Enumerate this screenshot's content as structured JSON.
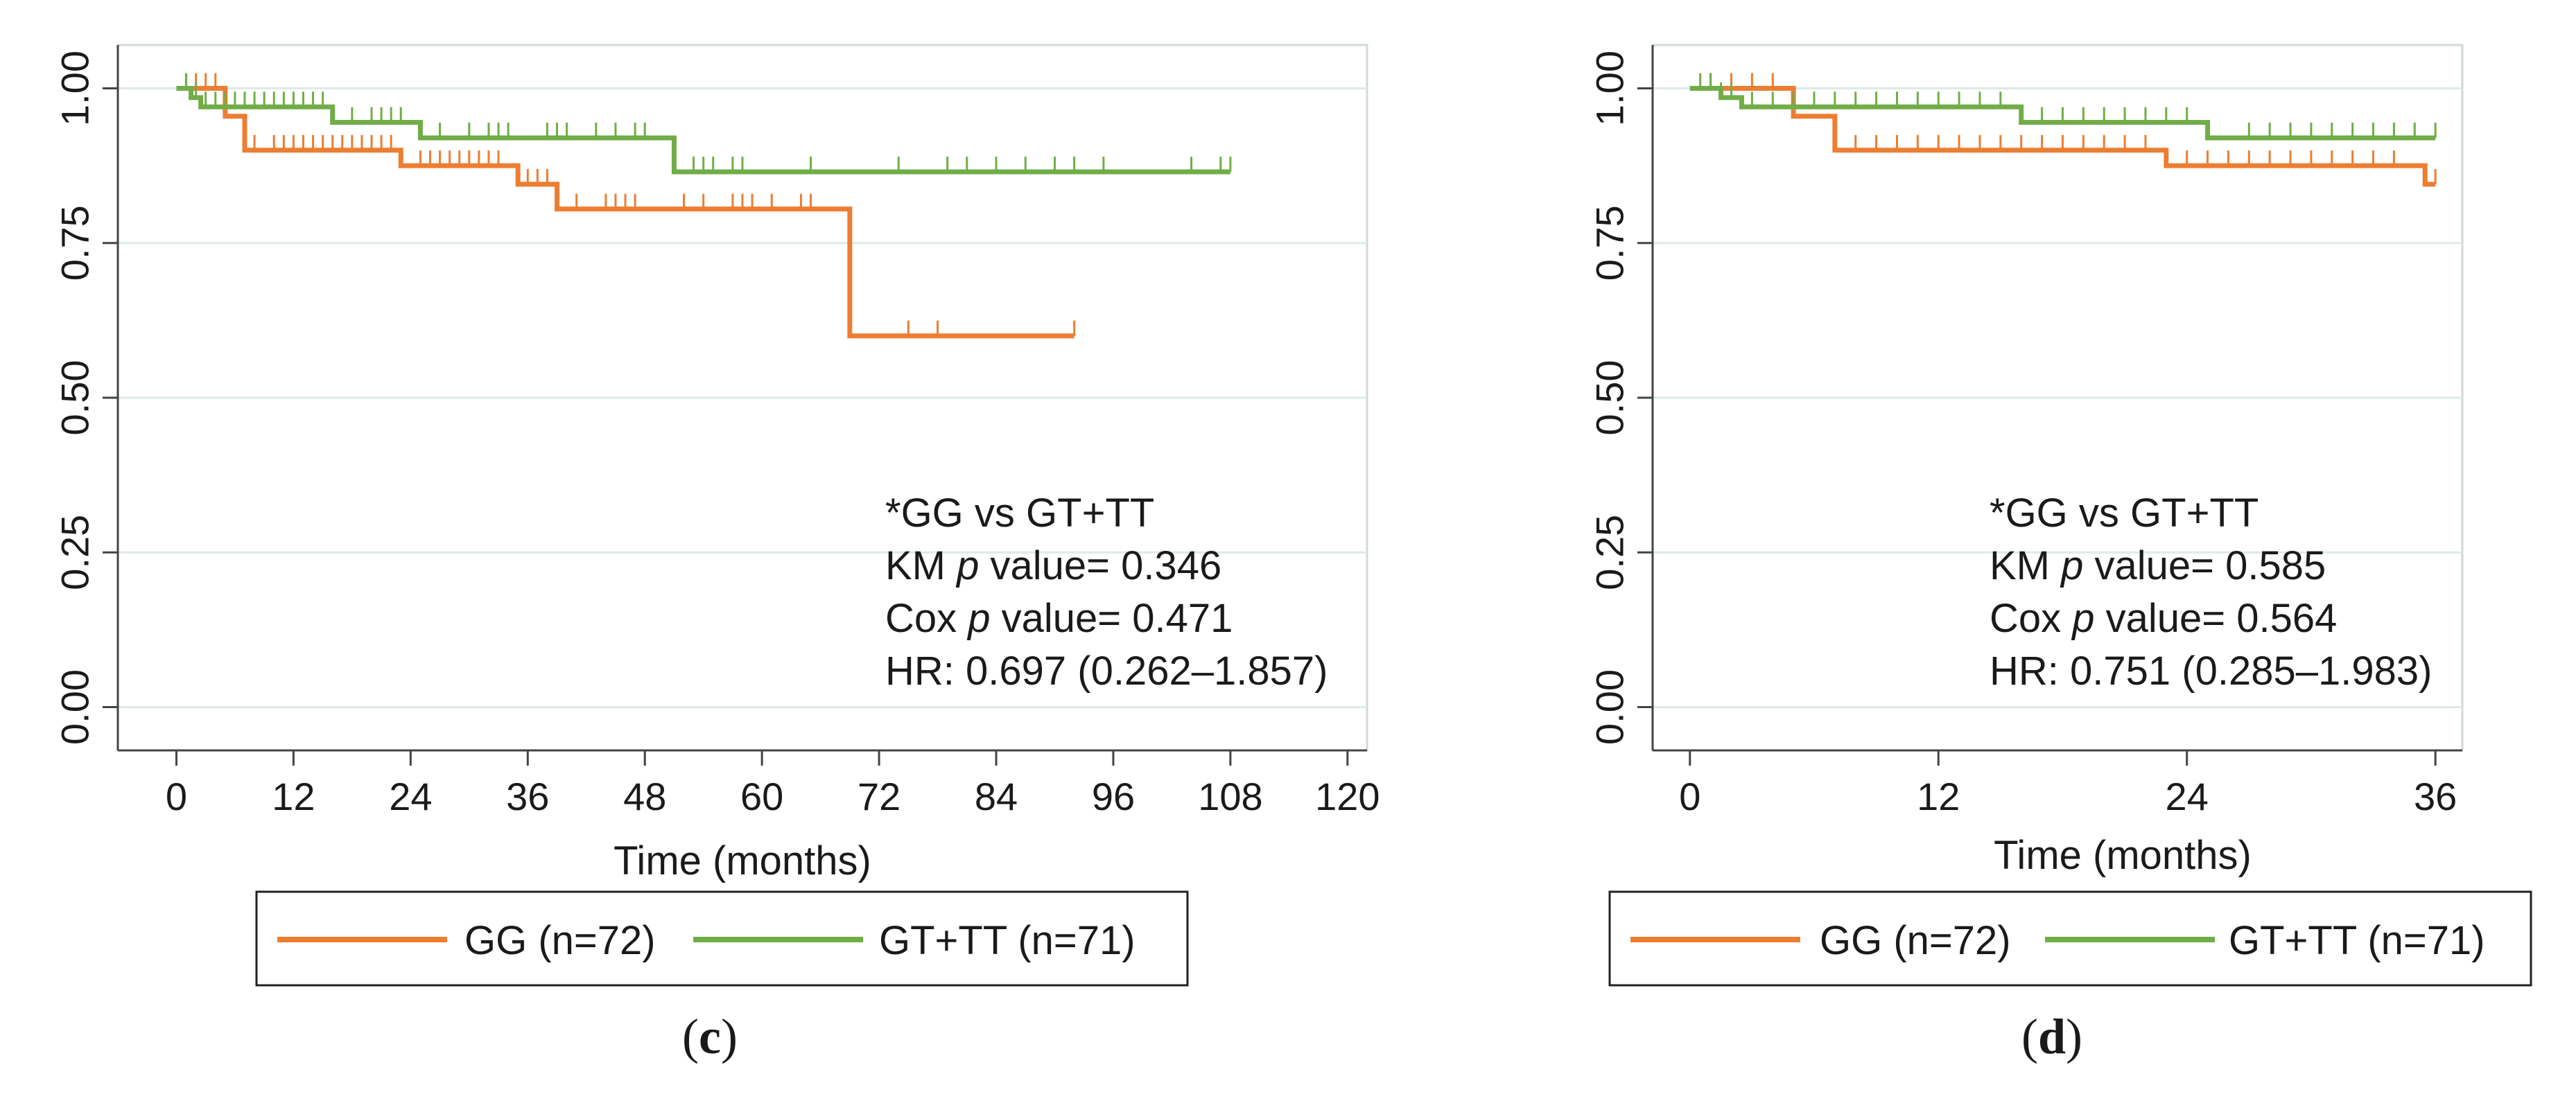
{
  "chart_data": [
    {
      "type": "line",
      "panel_label": {
        "open": "(",
        "letter": "c",
        "close": ")"
      },
      "xlabel": "Time (months)",
      "ylabel": "",
      "xlim": [
        -6,
        122
      ],
      "ylim": [
        -0.07,
        1.07
      ],
      "xticks": [
        0,
        12,
        24,
        36,
        48,
        60,
        72,
        84,
        96,
        108,
        120
      ],
      "yticks": [
        0.0,
        0.25,
        0.5,
        0.75,
        1.0
      ],
      "ytick_labels": [
        "0.00",
        "0.25",
        "0.50",
        "0.75",
        "1.00"
      ],
      "grid": true,
      "legend_position": "bottom",
      "annotation": {
        "line1": "*GG vs GT+TT",
        "line2_pre": "KM ",
        "line2_p": "p",
        "line2_post": " value= 0.346",
        "line3_pre": "Cox ",
        "line3_p": "p",
        "line3_post": " value= 0.471",
        "line4": "HR: 0.697 (0.262–1.857)"
      },
      "series": [
        {
          "name": "GG (n=72)",
          "color": "#ed7d31",
          "steps": [
            [
              0,
              1.0
            ],
            [
              5,
              0.955
            ],
            [
              7,
              0.9
            ],
            [
              23,
              0.875
            ],
            [
              35,
              0.845
            ],
            [
              39,
              0.805
            ],
            [
              69,
              0.6
            ],
            [
              92,
              0.6
            ]
          ],
          "censors": [
            1,
            2,
            3,
            4,
            8,
            10,
            11,
            12,
            13,
            14,
            15,
            16,
            17,
            18,
            19,
            20,
            21,
            22,
            25,
            26,
            27,
            28,
            29,
            30,
            31,
            32,
            33,
            36,
            37,
            38,
            41,
            44,
            45,
            46,
            47,
            52,
            54,
            57,
            58,
            59,
            61,
            64,
            65,
            75,
            78,
            92
          ]
        },
        {
          "name": "GT+TT (n=71)",
          "color": "#70ad47",
          "steps": [
            [
              0,
              1.0
            ],
            [
              1.5,
              0.985
            ],
            [
              2.5,
              0.97
            ],
            [
              16,
              0.945
            ],
            [
              25,
              0.92
            ],
            [
              51,
              0.865
            ],
            [
              108,
              0.865
            ]
          ],
          "censors": [
            1,
            2,
            3,
            4,
            5,
            6,
            7,
            8,
            9,
            10,
            11,
            12,
            13,
            14,
            15,
            18,
            20,
            21,
            22,
            23,
            27,
            30,
            32,
            33,
            34,
            38,
            39,
            40,
            43,
            45,
            47,
            48,
            53,
            54,
            55,
            57,
            58,
            65,
            74,
            79,
            81,
            84,
            87,
            90,
            92,
            95,
            104,
            107,
            108
          ]
        }
      ]
    },
    {
      "type": "line",
      "panel_label": {
        "open": "(",
        "letter": "d",
        "close": ")"
      },
      "xlabel": "Time (months)",
      "ylabel": "",
      "xlim": [
        -1.8,
        37.3
      ],
      "ylim": [
        -0.07,
        1.07
      ],
      "xticks": [
        0,
        12,
        24,
        36
      ],
      "yticks": [
        0.0,
        0.25,
        0.5,
        0.75,
        1.0
      ],
      "ytick_labels": [
        "0.00",
        "0.25",
        "0.50",
        "0.75",
        "1.00"
      ],
      "grid": true,
      "legend_position": "bottom",
      "annotation": {
        "line1": "*GG vs GT+TT",
        "line2_pre": "KM ",
        "line2_p": "p",
        "line2_post": " value= 0.585",
        "line3_pre": "Cox ",
        "line3_p": "p",
        "line3_post": " value= 0.564",
        "line4": "HR: 0.751 (0.285–1.983)"
      },
      "series": [
        {
          "name": "GG (n=72)",
          "color": "#ed7d31",
          "steps": [
            [
              0,
              1.0
            ],
            [
              5,
              0.955
            ],
            [
              7,
              0.9
            ],
            [
              23,
              0.875
            ],
            [
              35.5,
              0.845
            ],
            [
              36,
              0.845
            ]
          ],
          "censors": [
            1,
            2,
            3,
            4,
            8,
            9,
            10,
            11,
            12,
            13,
            14,
            15,
            16,
            17,
            18,
            19,
            20,
            21,
            22,
            24,
            25,
            26,
            27,
            28,
            29,
            30,
            31,
            32,
            33,
            34,
            36
          ]
        },
        {
          "name": "GT+TT (n=71)",
          "color": "#70ad47",
          "steps": [
            [
              0,
              1.0
            ],
            [
              1.5,
              0.985
            ],
            [
              2.5,
              0.97
            ],
            [
              16,
              0.945
            ],
            [
              25,
              0.92
            ],
            [
              36,
              0.92
            ]
          ],
          "censors": [
            0.5,
            1,
            1.5,
            2,
            3,
            4,
            5,
            6,
            7,
            8,
            9,
            10,
            11,
            12,
            13,
            14,
            15,
            17,
            18,
            19,
            20,
            21,
            22,
            23,
            24,
            27,
            28,
            29,
            30,
            31,
            32,
            33,
            34,
            35,
            36
          ]
        }
      ]
    }
  ]
}
